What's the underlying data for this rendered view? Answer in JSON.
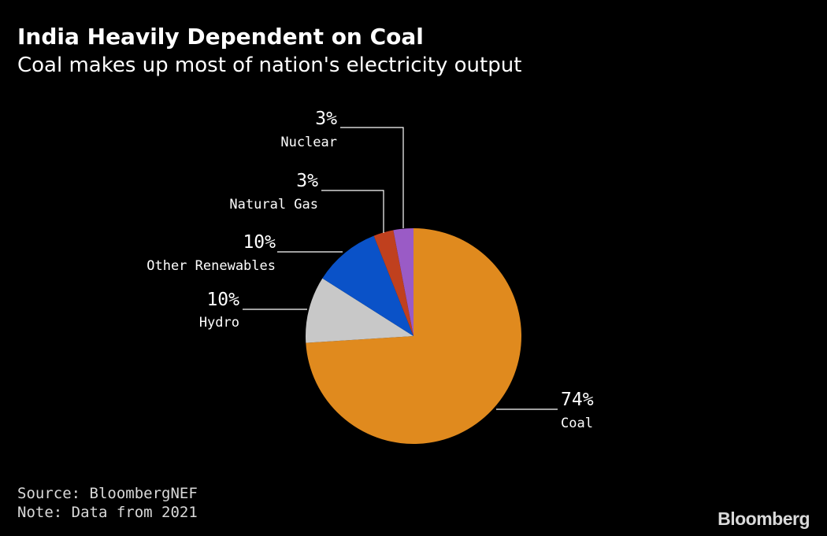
{
  "header": {
    "title": "India Heavily Dependent on Coal",
    "subtitle": "Coal makes up most of nation's electricity output"
  },
  "footer": {
    "source": "Source: BloombergNEF",
    "note": "Note: Data from 2021",
    "brand": "Bloomberg"
  },
  "chart_data": {
    "type": "pie",
    "title": "India Heavily Dependent on Coal",
    "subtitle": "Coal makes up most of nation's electricity output",
    "start": "12 o'clock, clockwise",
    "slices": [
      {
        "label": "Coal",
        "value": 74,
        "display": "74%",
        "color": "#E08A1E"
      },
      {
        "label": "Hydro",
        "value": 10,
        "display": "10%",
        "color": "#C8C8C8"
      },
      {
        "label": "Other Renewables",
        "value": 10,
        "display": "10%",
        "color": "#0A52C8"
      },
      {
        "label": "Natural Gas",
        "value": 3,
        "display": "3%",
        "color": "#C0401E"
      },
      {
        "label": "Nuclear",
        "value": 3,
        "display": "3%",
        "color": "#9A5BC6"
      }
    ]
  }
}
